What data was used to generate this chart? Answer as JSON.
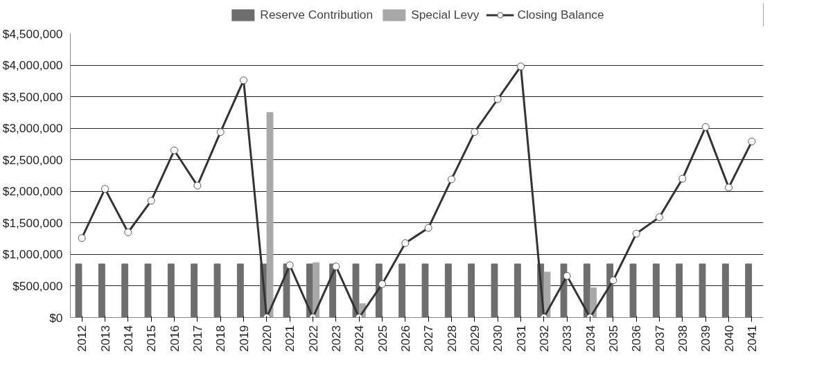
{
  "chart_data": {
    "type": "bar",
    "categories": [
      "2012",
      "2013",
      "2014",
      "2015",
      "2016",
      "2017",
      "2018",
      "2019",
      "2020",
      "2021",
      "2022",
      "2023",
      "2024",
      "2025",
      "2026",
      "2027",
      "2028",
      "2029",
      "2030",
      "2031",
      "2032",
      "2033",
      "2034",
      "2035",
      "2036",
      "2037",
      "2038",
      "2039",
      "2040",
      "2041"
    ],
    "series": [
      {
        "name": "Reserve Contribution",
        "color": "#6e6e6e",
        "values": [
          850000,
          850000,
          850000,
          850000,
          850000,
          850000,
          850000,
          850000,
          850000,
          850000,
          850000,
          850000,
          850000,
          850000,
          850000,
          850000,
          850000,
          850000,
          850000,
          850000,
          850000,
          850000,
          850000,
          850000,
          850000,
          850000,
          850000,
          850000,
          850000,
          850000
        ]
      },
      {
        "name": "Special Levy",
        "color": "#a8a8a8",
        "values": [
          null,
          null,
          null,
          null,
          null,
          null,
          null,
          null,
          3250000,
          null,
          870000,
          null,
          220000,
          null,
          null,
          null,
          null,
          null,
          null,
          null,
          720000,
          null,
          470000,
          null,
          null,
          null,
          null,
          null,
          null,
          null
        ]
      },
      {
        "name": "Closing Balance",
        "type": "line",
        "color": "#333333",
        "marker": "circle",
        "values": [
          1260000,
          2040000,
          1350000,
          1850000,
          2650000,
          2090000,
          2940000,
          3760000,
          0,
          830000,
          0,
          810000,
          0,
          530000,
          1180000,
          1420000,
          2190000,
          2940000,
          3460000,
          3980000,
          0,
          660000,
          0,
          590000,
          1330000,
          1590000,
          2200000,
          3020000,
          2060000,
          2790000
        ]
      }
    ],
    "ylim": [
      0,
      4500000
    ],
    "yticks": [
      {
        "value": 0,
        "label": "$0"
      },
      {
        "value": 500000,
        "label": "$500,000"
      },
      {
        "value": 1000000,
        "label": "$1,000,000"
      },
      {
        "value": 1500000,
        "label": "$1,500,000"
      },
      {
        "value": 2000000,
        "label": "$2,000,000"
      },
      {
        "value": 2500000,
        "label": "$2,500,000"
      },
      {
        "value": 3000000,
        "label": "$3,000,000"
      },
      {
        "value": 3500000,
        "label": "$3,500,000"
      },
      {
        "value": 4000000,
        "label": "$4,000,000"
      },
      {
        "value": 4500000,
        "label": "$4,500,000"
      }
    ],
    "grid": "y",
    "legend": "top"
  }
}
